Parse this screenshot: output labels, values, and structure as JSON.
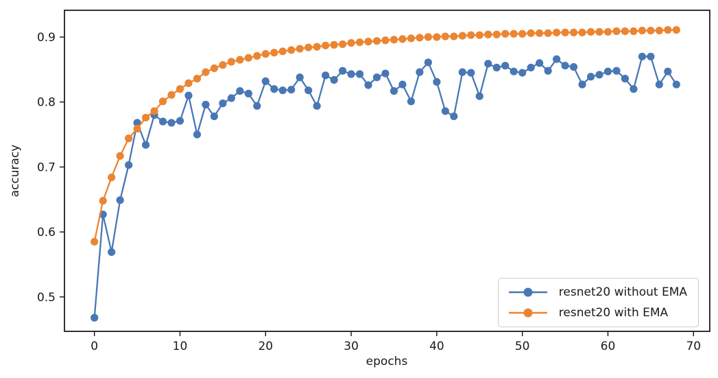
{
  "chart_data": {
    "type": "line",
    "title": "",
    "xlabel": "epochs",
    "ylabel": "accuracy",
    "xlim": [
      -3.5,
      71.9
    ],
    "ylim": [
      0.447,
      0.9412
    ],
    "x_ticks": [
      0,
      10,
      20,
      30,
      40,
      50,
      60,
      70
    ],
    "y_ticks": [
      "0.5",
      "0.6",
      "0.7",
      "0.8",
      "0.9"
    ],
    "grid": false,
    "legend_position": "lower right",
    "marker": "o",
    "epochs": [
      0,
      1,
      2,
      3,
      4,
      5,
      6,
      7,
      8,
      9,
      10,
      11,
      12,
      13,
      14,
      15,
      16,
      17,
      18,
      19,
      20,
      21,
      22,
      23,
      24,
      25,
      26,
      27,
      28,
      29,
      30,
      31,
      32,
      33,
      34,
      35,
      36,
      37,
      38,
      39,
      40,
      41,
      42,
      43,
      44,
      45,
      46,
      47,
      48,
      49,
      50,
      51,
      52,
      53,
      54,
      55,
      56,
      57,
      58,
      59,
      60,
      61,
      62,
      63,
      64,
      65,
      66,
      67,
      68
    ],
    "series": [
      {
        "name": "resnet20 without EMA",
        "color": "#4877b4",
        "values": [
          0.468,
          0.627,
          0.569,
          0.649,
          0.703,
          0.768,
          0.734,
          0.78,
          0.77,
          0.768,
          0.771,
          0.81,
          0.75,
          0.796,
          0.778,
          0.798,
          0.806,
          0.817,
          0.813,
          0.794,
          0.832,
          0.82,
          0.818,
          0.819,
          0.838,
          0.818,
          0.794,
          0.841,
          0.834,
          0.848,
          0.843,
          0.843,
          0.826,
          0.838,
          0.844,
          0.817,
          0.827,
          0.801,
          0.846,
          0.861,
          0.831,
          0.786,
          0.778,
          0.846,
          0.845,
          0.809,
          0.859,
          0.853,
          0.856,
          0.847,
          0.845,
          0.853,
          0.86,
          0.848,
          0.866,
          0.856,
          0.854,
          0.827,
          0.839,
          0.842,
          0.847,
          0.848,
          0.836,
          0.82,
          0.87,
          0.87,
          0.827,
          0.847,
          0.827
        ]
      },
      {
        "name": "resnet20 with EMA",
        "color": "#ec8532",
        "values": [
          0.585,
          0.648,
          0.684,
          0.717,
          0.744,
          0.759,
          0.776,
          0.786,
          0.801,
          0.811,
          0.82,
          0.829,
          0.836,
          0.846,
          0.852,
          0.857,
          0.862,
          0.865,
          0.868,
          0.871,
          0.874,
          0.876,
          0.878,
          0.88,
          0.882,
          0.884,
          0.885,
          0.887,
          0.888,
          0.889,
          0.891,
          0.892,
          0.893,
          0.894,
          0.895,
          0.896,
          0.897,
          0.898,
          0.899,
          0.9,
          0.9,
          0.901,
          0.901,
          0.902,
          0.903,
          0.903,
          0.904,
          0.904,
          0.905,
          0.905,
          0.905,
          0.906,
          0.906,
          0.906,
          0.907,
          0.907,
          0.907,
          0.907,
          0.908,
          0.908,
          0.908,
          0.909,
          0.909,
          0.909,
          0.91,
          0.91,
          0.91,
          0.911,
          0.911
        ]
      }
    ],
    "axis_color": "#000000",
    "tick_label_color": "#1a1a1a"
  }
}
